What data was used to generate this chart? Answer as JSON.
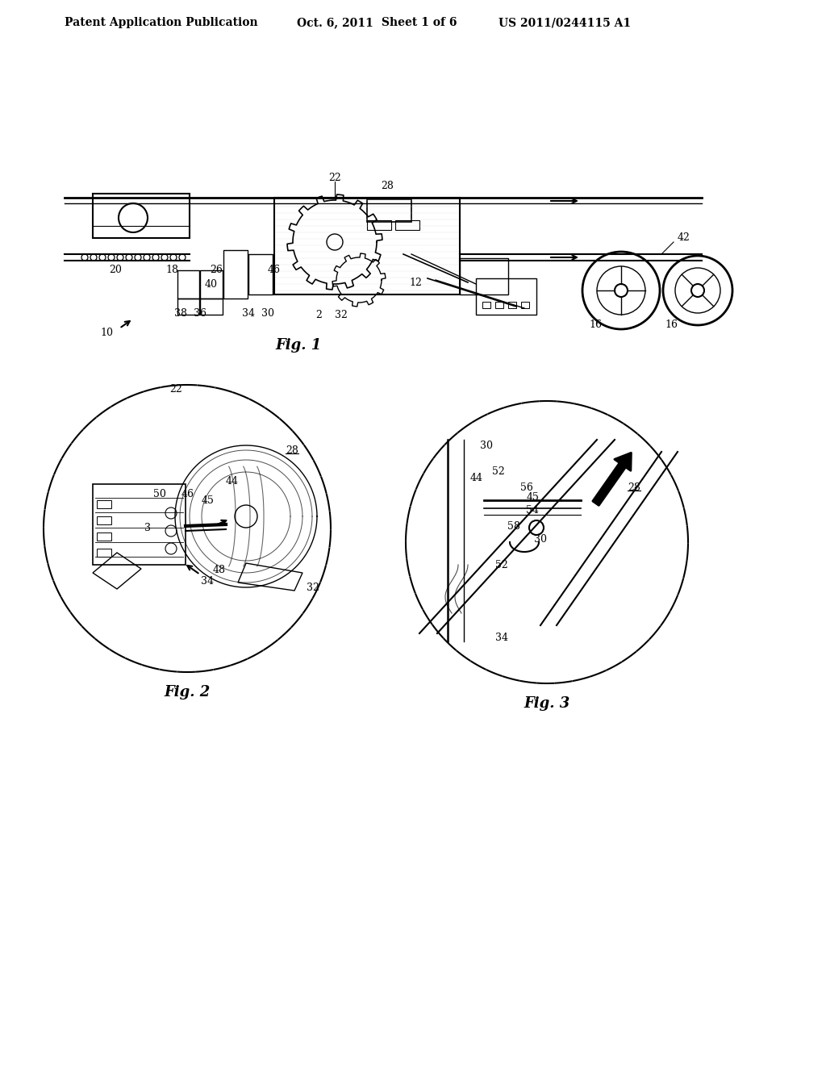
{
  "bg_color": "#ffffff",
  "header_text1": "Patent Application Publication",
  "header_text2": "Oct. 6, 2011",
  "header_text3": "Sheet 1 of 6",
  "header_text4": "US 2011/0244115 A1",
  "fig1_caption": "Fig. 1",
  "fig2_caption": "Fig. 2",
  "fig3_caption": "Fig. 3",
  "line_color": "#000000",
  "dashed_color": "#555555"
}
